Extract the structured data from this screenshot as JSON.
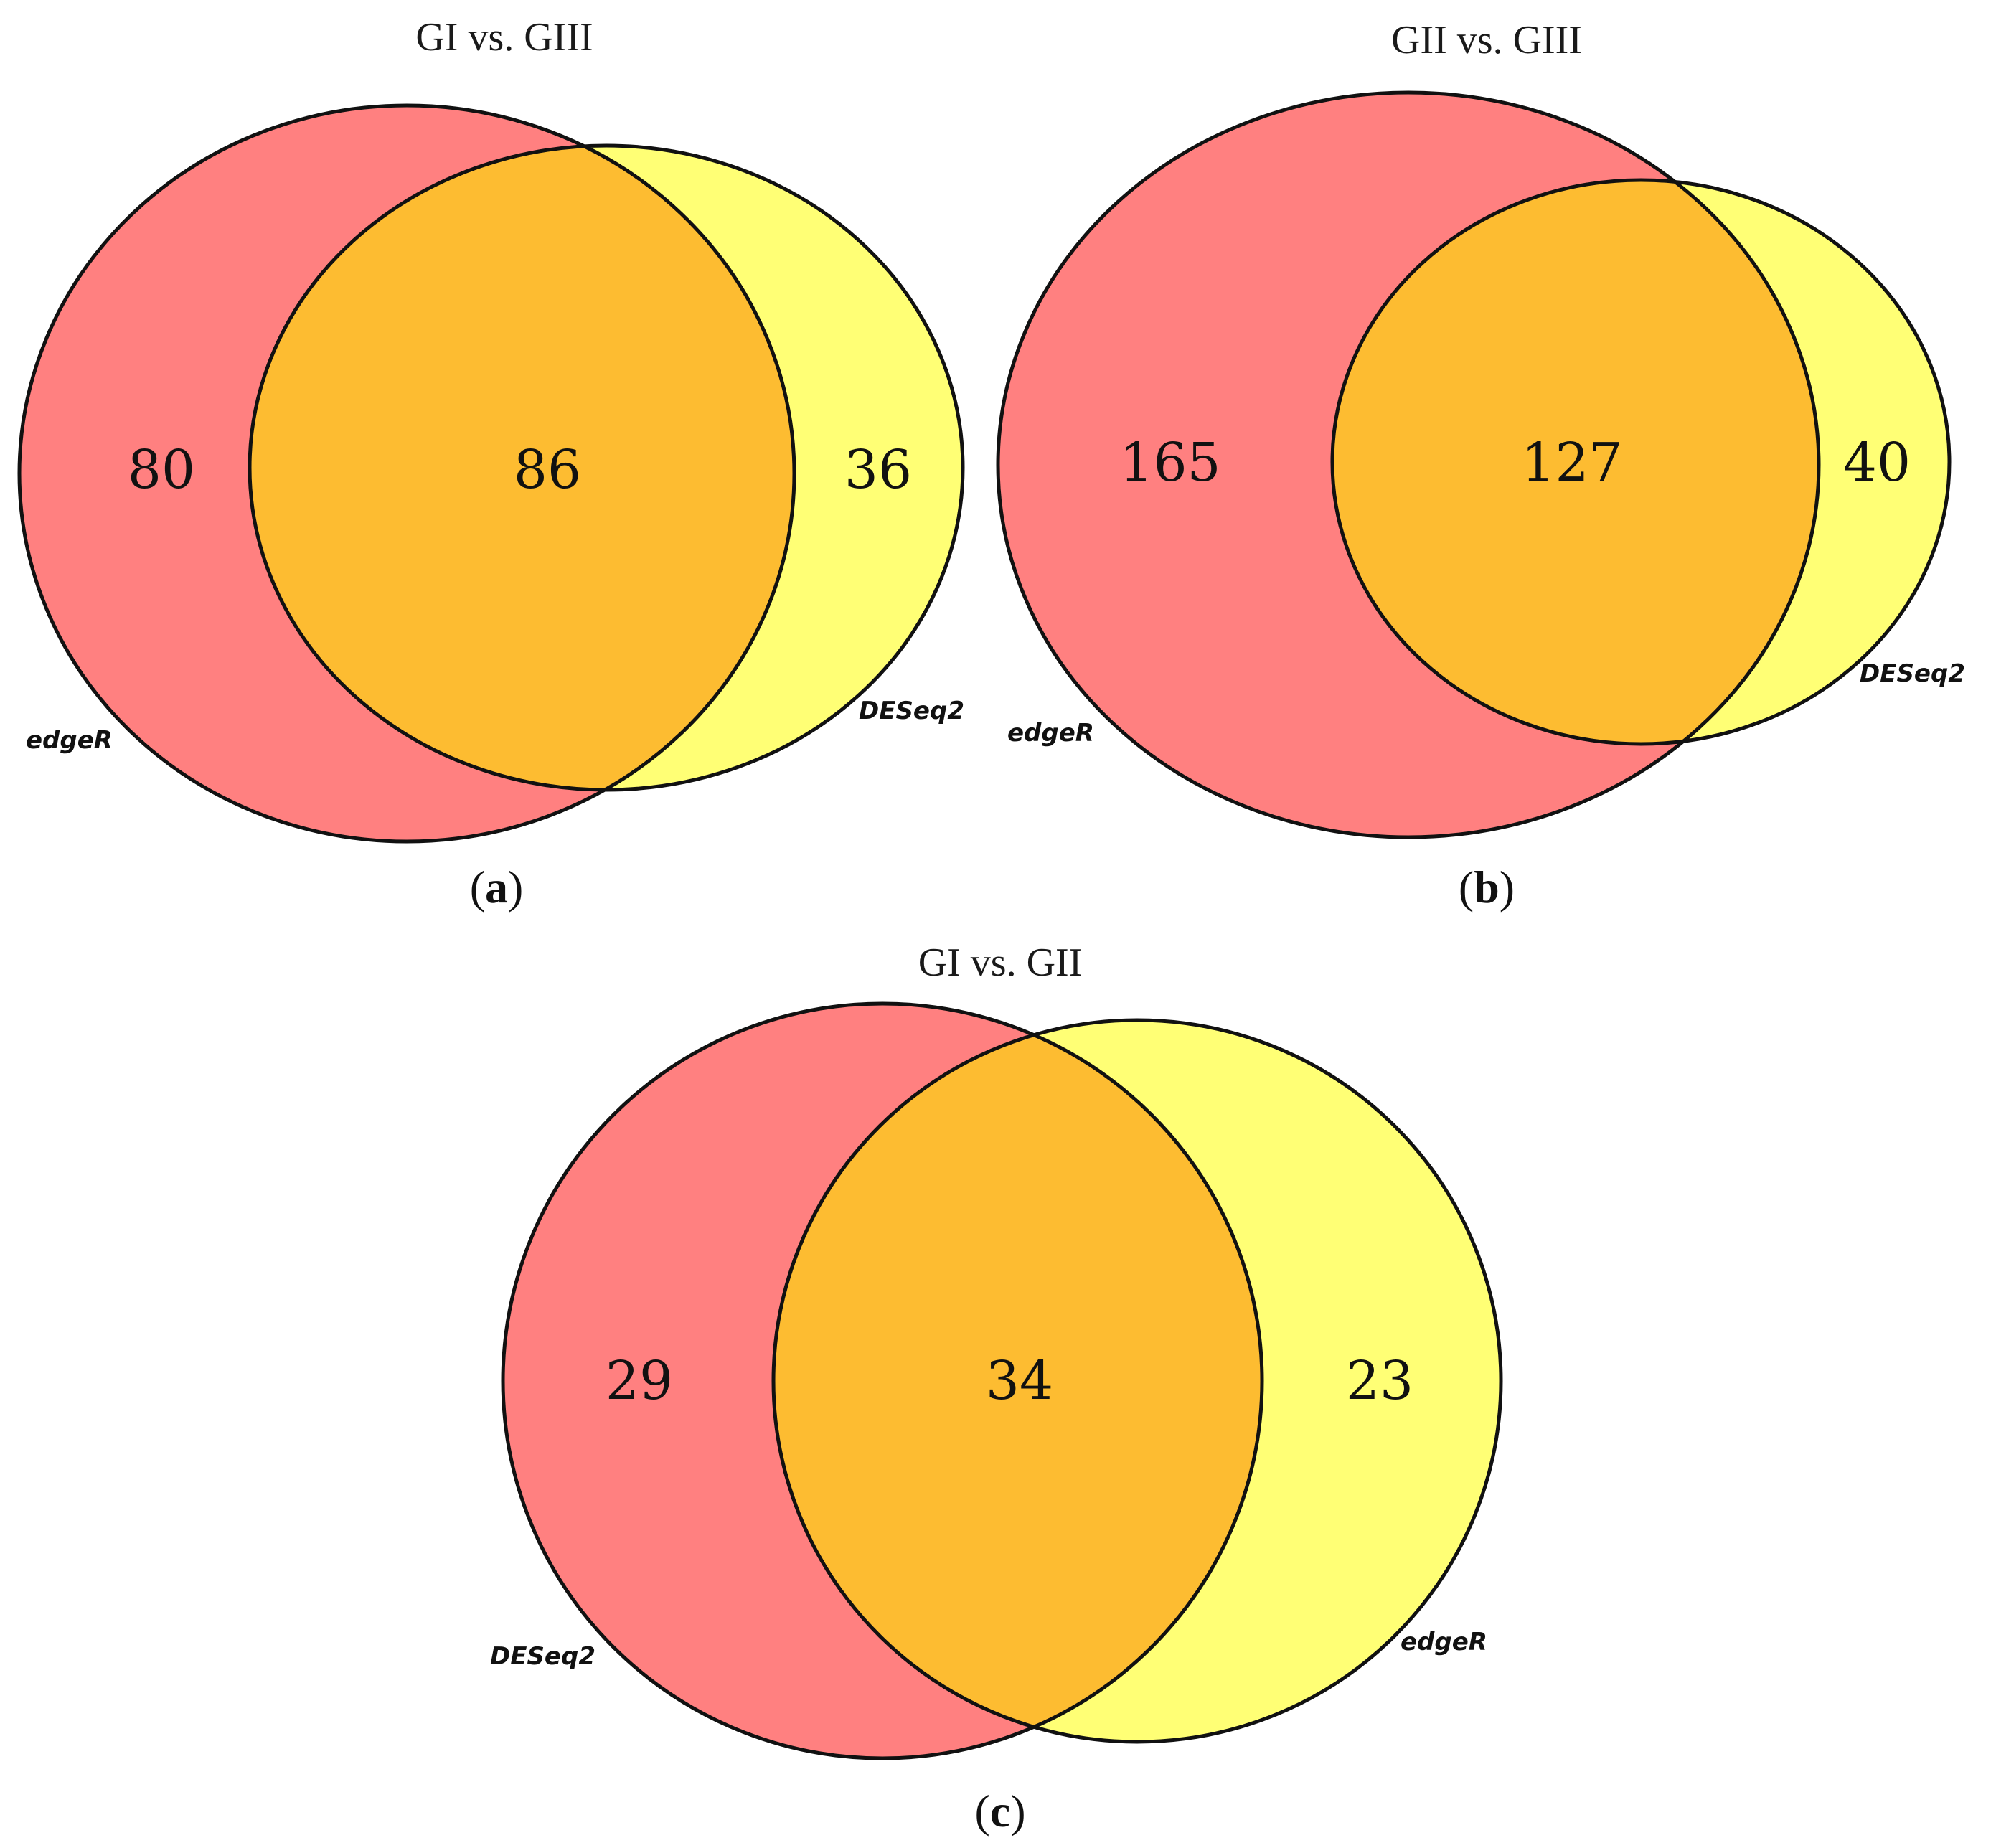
{
  "colors": {
    "left_only": "#ff8080",
    "right_only": "#ffff75",
    "overlap": "#fdbc31",
    "outline": "#111111"
  },
  "panels": [
    {
      "title": "GI vs. GIII",
      "label": "a",
      "left": {
        "name": "edgeR",
        "only": "80"
      },
      "right": {
        "name": "DESeq2",
        "only": "36"
      },
      "overlap": "86"
    },
    {
      "title": "GII vs. GIII",
      "label": "b",
      "left": {
        "name": "edgeR",
        "only": "165"
      },
      "right": {
        "name": "DESeq2",
        "only": "40"
      },
      "overlap": "127"
    },
    {
      "title": "GI vs. GII",
      "label": "c",
      "left": {
        "name": "DESeq2",
        "only": "29"
      },
      "right": {
        "name": "edgeR",
        "only": "23"
      },
      "overlap": "34"
    }
  ]
}
